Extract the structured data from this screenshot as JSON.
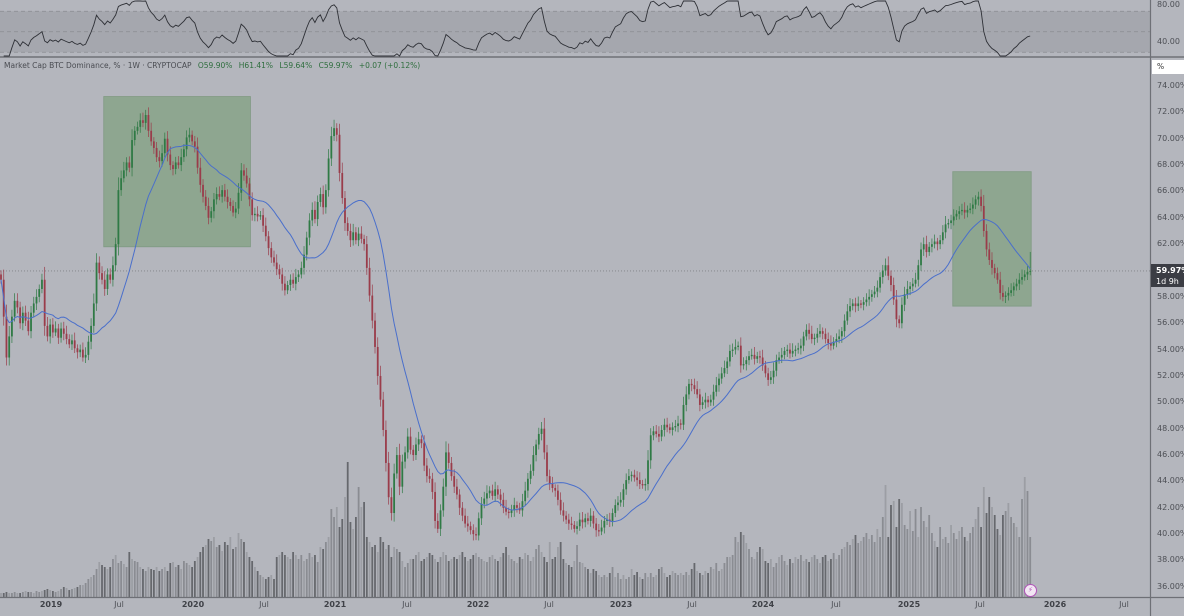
{
  "legend": {
    "symbol": "Market Cap BTC Dominance, % · 1W · CRYPTOCAP",
    "open": "O59.90%",
    "high": "H61.41%",
    "low": "L59.64%",
    "close": "C59.97%",
    "change": "+0.07 (+0.12%)"
  },
  "price_scale": {
    "unit": "%",
    "last_price": "59.97%",
    "countdown": "1d 9h"
  },
  "rsi_scale": [
    "80.00",
    "40.00"
  ],
  "colors": {
    "background": "#b4b6bd",
    "up": "#2f7a45",
    "down": "#9a3c4a",
    "ma": "#4a6fcb",
    "highlight_box": "#8ea690",
    "rsi_line": "#2e3036"
  },
  "icons": {
    "alert": "lightning-alert-icon"
  },
  "chart_data": {
    "type": "candlestick",
    "interval": "1W",
    "ylim": [
      35,
      75
    ],
    "yticks": [
      "74.00%",
      "72.00%",
      "70.00%",
      "68.00%",
      "66.00%",
      "64.00%",
      "62.00%",
      "58.00%",
      "56.00%",
      "54.00%",
      "52.00%",
      "50.00%",
      "48.00%",
      "46.00%",
      "44.00%",
      "42.00%",
      "40.00%",
      "38.00%",
      "36.00%"
    ],
    "ytick_values": [
      74,
      72,
      70,
      68,
      66,
      64,
      62,
      58,
      56,
      54,
      52,
      50,
      48,
      46,
      44,
      42,
      40,
      38,
      36
    ],
    "xticks": [
      "2019",
      "Jul",
      "2020",
      "Jul",
      "2021",
      "Jul",
      "2022",
      "Jul",
      "2023",
      "Jul",
      "2024",
      "Jul",
      "2025",
      "Jul",
      "2026",
      "Jul"
    ],
    "last_candle": {
      "open": 59.9,
      "high": 61.41,
      "low": 59.64,
      "close": 59.97
    },
    "moving_average_period": 20,
    "rsi_period": 14,
    "highlight_ranges": [
      {
        "from_index": 38,
        "to_index": 91,
        "low": 61.8,
        "high": 73.2
      },
      {
        "from_index": 349,
        "to_index": 377,
        "low": 57.3,
        "high": 67.5
      }
    ],
    "close": [
      59.3,
      56.5,
      53.4,
      55.0,
      56.5,
      57.7,
      57.2,
      56.0,
      56.8,
      56.2,
      55.4,
      56.8,
      57.5,
      58.0,
      58.6,
      59.3,
      55.8,
      55.0,
      55.9,
      55.3,
      55.6,
      54.9,
      55.6,
      55.2,
      54.8,
      54.4,
      54.7,
      54.1,
      53.8,
      54.0,
      53.4,
      53.6,
      54.6,
      55.8,
      57.5,
      60.6,
      59.8,
      59.3,
      58.6,
      59.7,
      59.3,
      60.4,
      62.0,
      66.1,
      67.0,
      67.6,
      68.2,
      67.8,
      69.9,
      70.6,
      70.9,
      71.4,
      71.2,
      71.8,
      70.6,
      69.8,
      69.3,
      68.6,
      68.3,
      68.9,
      70.0,
      68.8,
      68.0,
      67.7,
      68.2,
      68.0,
      68.6,
      69.2,
      70.1,
      70.3,
      69.8,
      69.4,
      67.8,
      66.5,
      65.6,
      64.9,
      64.0,
      64.5,
      65.4,
      65.8,
      65.6,
      66.1,
      65.6,
      65.2,
      64.9,
      64.4,
      64.7,
      65.9,
      67.6,
      67.2,
      66.6,
      65.4,
      64.2,
      64.3,
      64.1,
      64.2,
      63.4,
      62.6,
      61.7,
      61.0,
      60.6,
      60.1,
      59.7,
      59.0,
      58.5,
      58.9,
      59.3,
      59.0,
      59.5,
      59.7,
      60.2,
      61.2,
      62.5,
      63.8,
      64.6,
      63.9,
      65.2,
      65.8,
      64.8,
      66.1,
      68.5,
      70.2,
      70.8,
      70.3,
      67.4,
      65.5,
      63.6,
      63.0,
      62.3,
      62.9,
      62.3,
      62.8,
      62.4,
      62.0,
      60.2,
      58.1,
      56.2,
      54.2,
      52.0,
      50.2,
      47.9,
      45.4,
      42.8,
      41.6,
      44.6,
      46.0,
      43.6,
      45.5,
      46.2,
      47.4,
      46.4,
      46.0,
      46.8,
      47.2,
      46.9,
      45.2,
      44.4,
      44.2,
      43.2,
      41.0,
      40.4,
      41.8,
      43.6,
      46.2,
      45.4,
      44.4,
      43.6,
      43.0,
      42.0,
      41.4,
      40.8,
      40.6,
      40.3,
      40.0,
      39.9,
      41.2,
      42.3,
      42.7,
      43.1,
      43.3,
      42.9,
      43.4,
      43.0,
      42.6,
      42.0,
      41.7,
      41.6,
      41.8,
      42.2,
      42.0,
      41.8,
      42.5,
      43.3,
      44.2,
      44.8,
      46.0,
      46.8,
      47.6,
      48.0,
      46.2,
      44.4,
      43.8,
      43.5,
      43.3,
      42.6,
      41.8,
      41.4,
      41.1,
      40.8,
      40.7,
      40.4,
      40.6,
      41.1,
      40.9,
      41.2,
      41.0,
      41.4,
      40.8,
      40.3,
      40.2,
      40.5,
      41.0,
      41.1,
      41.0,
      41.6,
      42.2,
      42.4,
      42.6,
      43.4,
      44.1,
      44.4,
      44.5,
      44.3,
      44.1,
      43.8,
      43.7,
      43.8,
      45.6,
      47.5,
      47.8,
      47.6,
      47.4,
      47.9,
      48.3,
      48.1,
      47.9,
      48.1,
      48.2,
      48.4,
      48.3,
      49.8,
      50.6,
      51.4,
      51.3,
      51.0,
      50.6,
      49.8,
      50.0,
      50.2,
      50.0,
      50.2,
      50.8,
      51.3,
      51.8,
      52.2,
      52.6,
      53.1,
      53.9,
      54.0,
      54.2,
      54.3,
      52.8,
      52.9,
      53.2,
      53.5,
      53.6,
      53.3,
      53.5,
      53.4,
      52.8,
      52.2,
      51.7,
      51.9,
      52.4,
      53.2,
      53.4,
      53.6,
      53.9,
      54.0,
      53.7,
      53.9,
      54.0,
      54.1,
      54.3,
      55.0,
      55.5,
      55.2,
      54.8,
      54.9,
      55.2,
      55.4,
      55.2,
      54.8,
      54.5,
      54.3,
      54.6,
      54.8,
      55.0,
      55.4,
      56.2,
      56.9,
      57.3,
      57.5,
      57.3,
      57.5,
      57.4,
      57.6,
      57.8,
      58.0,
      58.2,
      58.4,
      58.7,
      59.5,
      60.0,
      60.4,
      59.6,
      58.9,
      57.8,
      56.3,
      56.0,
      57.4,
      58.2,
      58.6,
      58.8,
      59.0,
      59.3,
      60.4,
      61.6,
      62.0,
      61.4,
      61.8,
      62.0,
      62.2,
      62.0,
      62.3,
      62.9,
      63.5,
      63.6,
      63.8,
      64.1,
      64.3,
      64.5,
      64.6,
      64.4,
      64.6,
      64.7,
      65.0,
      65.4,
      65.6,
      64.9,
      63.0,
      61.6,
      60.8,
      60.2,
      59.8,
      59.3,
      58.3,
      58.0,
      58.1,
      58.3,
      58.5,
      58.8,
      59.0,
      59.3,
      59.5,
      59.7,
      59.9,
      59.97
    ],
    "volume": [
      4,
      4,
      5,
      4,
      4,
      5,
      4,
      4,
      5,
      6,
      5,
      5,
      4,
      6,
      5,
      6,
      7,
      8,
      7,
      6,
      5,
      6,
      8,
      10,
      9,
      7,
      8,
      9,
      10,
      12,
      12,
      14,
      18,
      20,
      22,
      28,
      35,
      32,
      30,
      28,
      30,
      38,
      42,
      34,
      36,
      33,
      30,
      45,
      38,
      36,
      35,
      30,
      28,
      26,
      30,
      28,
      27,
      30,
      26,
      28,
      30,
      26,
      34,
      35,
      30,
      32,
      28,
      36,
      34,
      32,
      30,
      36,
      40,
      45,
      50,
      52,
      58,
      56,
      60,
      50,
      52,
      46,
      55,
      52,
      60,
      48,
      50,
      64,
      58,
      55,
      45,
      40,
      36,
      30,
      26,
      22,
      20,
      18,
      20,
      22,
      18,
      40,
      42,
      45,
      42,
      40,
      38,
      45,
      42,
      38,
      42,
      36,
      38,
      44,
      40,
      42,
      35,
      50,
      48,
      55,
      60,
      88,
      80,
      90,
      70,
      78,
      100,
      135,
      75,
      68,
      80,
      110,
      90,
      95,
      60,
      55,
      50,
      52,
      45,
      60,
      55,
      48,
      52,
      40,
      50,
      48,
      45,
      36,
      30,
      34,
      38,
      38,
      42,
      45,
      36,
      38,
      40,
      44,
      42,
      38,
      35,
      40,
      45,
      42,
      36,
      38,
      40,
      38,
      42,
      45,
      40,
      36,
      38,
      42,
      44,
      40,
      38,
      36,
      35,
      40,
      42,
      38,
      36,
      40,
      44,
      50,
      42,
      38,
      36,
      34,
      40,
      38,
      44,
      42,
      36,
      40,
      48,
      52,
      45,
      40,
      35,
      55,
      38,
      40,
      50,
      55,
      38,
      34,
      32,
      30,
      36,
      52,
      35,
      34,
      30,
      28,
      24,
      28,
      26,
      22,
      20,
      22,
      20,
      24,
      30,
      20,
      24,
      18,
      22,
      18,
      20,
      28,
      22,
      25,
      20,
      18,
      24,
      20,
      24,
      20,
      22,
      28,
      30,
      24,
      20,
      22,
      26,
      24,
      22,
      24,
      22,
      25,
      22,
      28,
      34,
      26,
      24,
      22,
      26,
      24,
      30,
      28,
      34,
      26,
      28,
      34,
      40,
      40,
      42,
      60,
      55,
      65,
      62,
      54,
      48,
      40,
      38,
      45,
      50,
      48,
      36,
      34,
      38,
      30,
      34,
      40,
      42,
      36,
      32,
      38,
      34,
      40,
      38,
      42,
      36,
      38,
      35,
      40,
      42,
      38,
      34,
      40,
      42,
      36,
      38,
      44,
      38,
      42,
      48,
      50,
      55,
      52,
      58,
      62,
      54,
      56,
      60,
      64,
      58,
      62,
      55,
      68,
      60,
      80,
      112,
      60,
      92,
      96,
      70,
      98,
      94,
      72,
      68,
      86,
      66,
      88,
      60,
      90,
      76,
      70,
      82,
      64,
      56,
      50,
      70,
      58,
      60,
      54,
      72,
      64,
      58,
      66,
      70,
      60,
      56,
      64,
      70,
      78,
      90,
      70,
      110,
      84,
      100,
      90,
      82,
      68,
      62,
      82,
      86,
      94,
      80,
      74,
      70,
      60,
      98,
      120,
      106,
      60
    ]
  }
}
